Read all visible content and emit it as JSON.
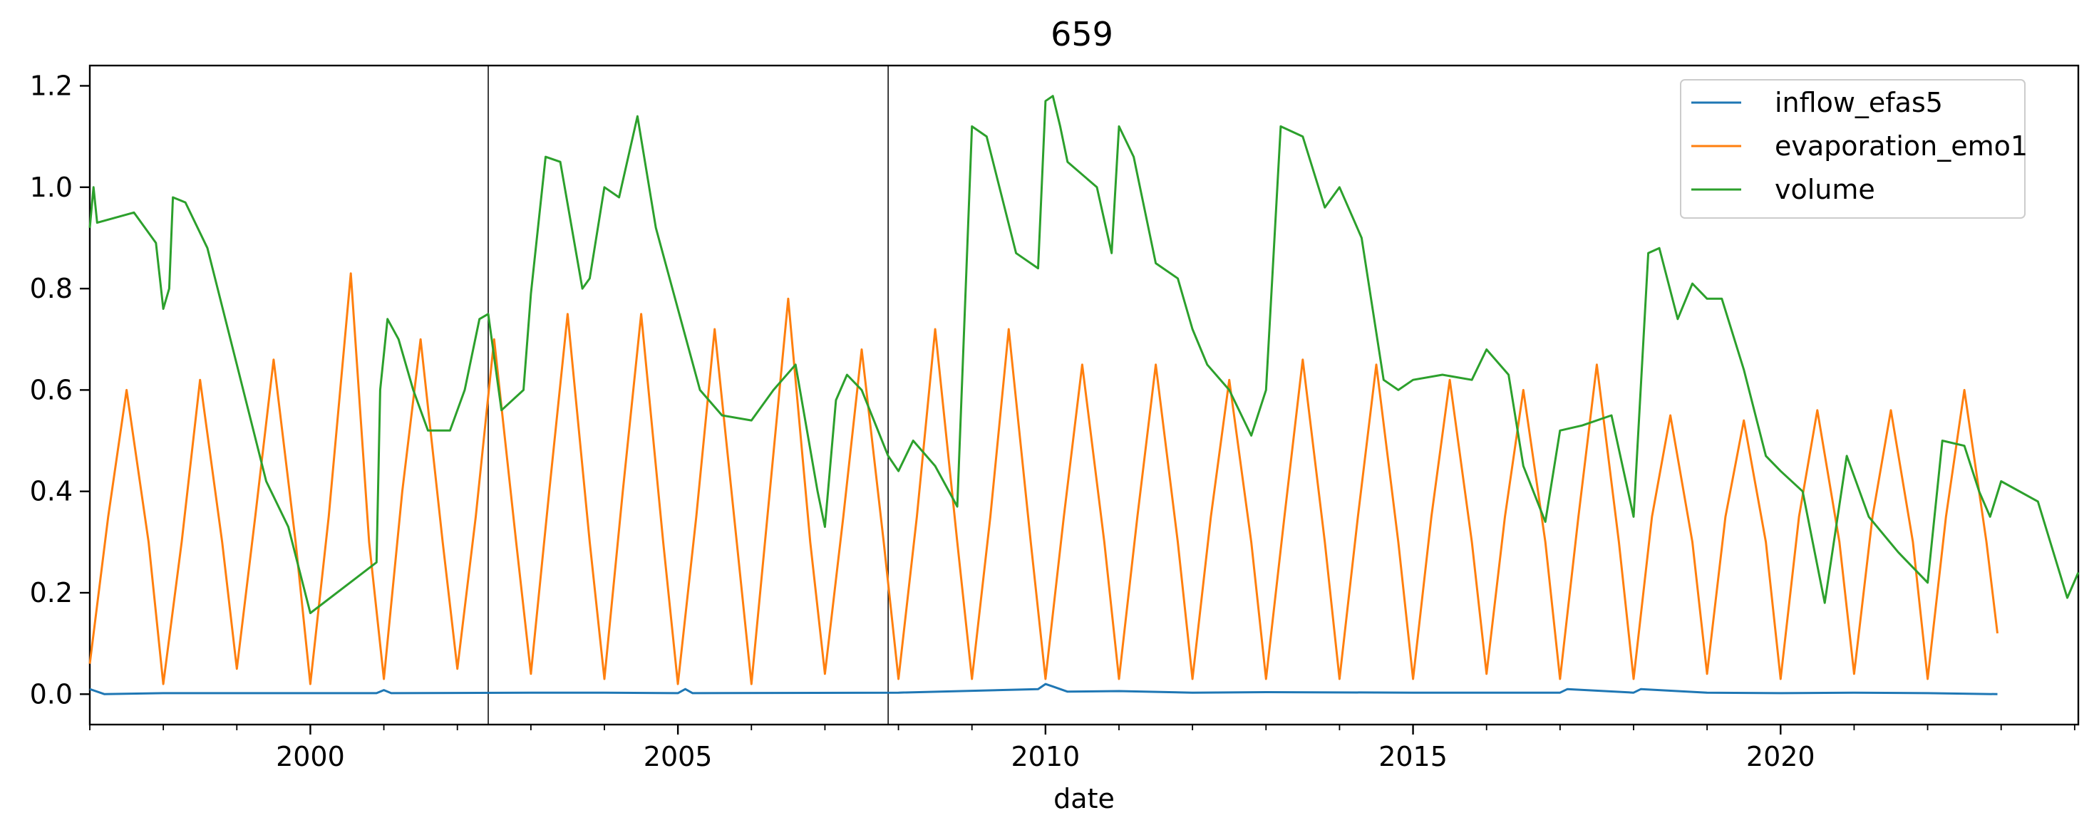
{
  "chart_data": {
    "type": "line",
    "title": "659",
    "xlabel": "date",
    "ylabel": "",
    "xlim": [
      1997.0,
      2024.05
    ],
    "ylim": [
      -0.06,
      1.24
    ],
    "grid": false,
    "legend_position": "top-right",
    "x_ticks": [
      {
        "value": 2000,
        "label": "2000"
      },
      {
        "value": 2005,
        "label": "2005"
      },
      {
        "value": 2010,
        "label": "2010"
      },
      {
        "value": 2015,
        "label": "2015"
      },
      {
        "value": 2020,
        "label": "2020"
      }
    ],
    "y_ticks": [
      {
        "value": 0.0,
        "label": "0.0"
      },
      {
        "value": 0.2,
        "label": "0.2"
      },
      {
        "value": 0.4,
        "label": "0.4"
      },
      {
        "value": 0.6,
        "label": "0.6"
      },
      {
        "value": 0.8,
        "label": "0.8"
      },
      {
        "value": 1.0,
        "label": "1.0"
      },
      {
        "value": 1.2,
        "label": "1.2"
      }
    ],
    "vertical_lines": [
      2002.42,
      2007.86
    ],
    "series": [
      {
        "name": "inflow_efas5",
        "color": "#1f77b4",
        "x": [
          1997.0,
          1997.2,
          1998.0,
          2000.9,
          2001.0,
          2001.1,
          2003.0,
          2004.0,
          2005.0,
          2005.1,
          2005.2,
          2008.0,
          2009.9,
          2010.0,
          2010.1,
          2010.3,
          2011.0,
          2012.0,
          2013.0,
          2015.0,
          2016.0,
          2017.0,
          2017.1,
          2018.0,
          2018.1,
          2019.0,
          2020.0,
          2021.0,
          2022.0,
          2022.95
        ],
        "y": [
          0.01,
          0.0,
          0.002,
          0.002,
          0.008,
          0.002,
          0.003,
          0.003,
          0.002,
          0.01,
          0.002,
          0.003,
          0.01,
          0.02,
          0.015,
          0.005,
          0.006,
          0.003,
          0.004,
          0.003,
          0.003,
          0.003,
          0.01,
          0.003,
          0.01,
          0.003,
          0.002,
          0.003,
          0.002,
          0.0
        ]
      },
      {
        "name": "evaporation_emo1",
        "color": "#ff7f0e",
        "x": [
          1997.0,
          1997.25,
          1997.5,
          1997.8,
          1998.0,
          1998.25,
          1998.5,
          1998.8,
          1999.0,
          1999.25,
          1999.5,
          1999.8,
          2000.0,
          2000.25,
          2000.55,
          2000.8,
          2001.0,
          2001.25,
          2001.5,
          2001.8,
          2002.0,
          2002.25,
          2002.5,
          2002.8,
          2003.0,
          2003.25,
          2003.5,
          2003.8,
          2004.0,
          2004.25,
          2004.5,
          2004.8,
          2005.0,
          2005.25,
          2005.5,
          2005.8,
          2006.0,
          2006.25,
          2006.5,
          2006.8,
          2007.0,
          2007.25,
          2007.5,
          2007.8,
          2008.0,
          2008.25,
          2008.5,
          2008.8,
          2009.0,
          2009.25,
          2009.5,
          2009.8,
          2010.0,
          2010.25,
          2010.5,
          2010.8,
          2011.0,
          2011.25,
          2011.5,
          2011.8,
          2012.0,
          2012.25,
          2012.5,
          2012.8,
          2013.0,
          2013.25,
          2013.5,
          2013.8,
          2014.0,
          2014.25,
          2014.5,
          2014.8,
          2015.0,
          2015.25,
          2015.5,
          2015.8,
          2016.0,
          2016.25,
          2016.5,
          2016.8,
          2017.0,
          2017.25,
          2017.5,
          2017.8,
          2018.0,
          2018.25,
          2018.5,
          2018.8,
          2019.0,
          2019.25,
          2019.5,
          2019.8,
          2020.0,
          2020.25,
          2020.5,
          2020.8,
          2021.0,
          2021.25,
          2021.5,
          2021.8,
          2022.0,
          2022.25,
          2022.5,
          2022.8,
          2022.95
        ],
        "y": [
          0.06,
          0.35,
          0.6,
          0.3,
          0.02,
          0.3,
          0.62,
          0.3,
          0.05,
          0.35,
          0.66,
          0.3,
          0.02,
          0.35,
          0.83,
          0.3,
          0.03,
          0.4,
          0.7,
          0.3,
          0.05,
          0.35,
          0.7,
          0.3,
          0.04,
          0.4,
          0.75,
          0.3,
          0.03,
          0.4,
          0.75,
          0.3,
          0.02,
          0.35,
          0.72,
          0.3,
          0.02,
          0.4,
          0.78,
          0.3,
          0.04,
          0.35,
          0.68,
          0.3,
          0.03,
          0.35,
          0.72,
          0.3,
          0.03,
          0.35,
          0.72,
          0.3,
          0.03,
          0.35,
          0.65,
          0.3,
          0.03,
          0.35,
          0.65,
          0.3,
          0.03,
          0.35,
          0.62,
          0.3,
          0.03,
          0.35,
          0.66,
          0.3,
          0.03,
          0.35,
          0.65,
          0.3,
          0.03,
          0.35,
          0.62,
          0.3,
          0.04,
          0.35,
          0.6,
          0.3,
          0.03,
          0.35,
          0.65,
          0.3,
          0.03,
          0.35,
          0.55,
          0.3,
          0.04,
          0.35,
          0.54,
          0.3,
          0.03,
          0.35,
          0.56,
          0.3,
          0.04,
          0.35,
          0.56,
          0.3,
          0.03,
          0.35,
          0.6,
          0.3,
          0.12
        ]
      },
      {
        "name": "volume",
        "color": "#2ca02c",
        "x": [
          1997.0,
          1997.05,
          1997.1,
          1997.6,
          1997.9,
          1998.0,
          1998.08,
          1998.13,
          1998.3,
          1998.6,
          1999.0,
          1999.4,
          1999.7,
          2000.0,
          2000.9,
          2000.95,
          2001.05,
          2001.2,
          2001.4,
          2001.6,
          2001.9,
          2002.1,
          2002.3,
          2002.42,
          2002.6,
          2002.9,
          2003.0,
          2003.2,
          2003.4,
          2003.7,
          2003.8,
          2004.0,
          2004.2,
          2004.45,
          2004.7,
          2005.0,
          2005.3,
          2005.6,
          2006.0,
          2006.3,
          2006.6,
          2006.9,
          2007.0,
          2007.15,
          2007.3,
          2007.5,
          2007.86,
          2008.0,
          2008.2,
          2008.5,
          2008.8,
          2009.0,
          2009.2,
          2009.6,
          2009.9,
          2010.0,
          2010.1,
          2010.2,
          2010.3,
          2010.7,
          2010.9,
          2011.0,
          2011.2,
          2011.5,
          2011.8,
          2012.0,
          2012.2,
          2012.5,
          2012.8,
          2013.0,
          2013.2,
          2013.5,
          2013.8,
          2014.0,
          2014.3,
          2014.6,
          2014.8,
          2015.0,
          2015.4,
          2015.8,
          2016.0,
          2016.3,
          2016.5,
          2016.8,
          2017.0,
          2017.3,
          2017.7,
          2018.0,
          2018.2,
          2018.35,
          2018.6,
          2018.8,
          2019.0,
          2019.2,
          2019.5,
          2019.8,
          2020.0,
          2020.3,
          2020.6,
          2020.9,
          2021.2,
          2021.6,
          2022.0,
          2022.2,
          2022.5,
          2022.7,
          2022.85,
          2023.0,
          2023.5,
          2023.9,
          2024.05
        ],
        "y": [
          0.92,
          1.0,
          0.93,
          0.95,
          0.89,
          0.76,
          0.8,
          0.98,
          0.97,
          0.88,
          0.65,
          0.42,
          0.33,
          0.16,
          0.26,
          0.6,
          0.74,
          0.7,
          0.6,
          0.52,
          0.52,
          0.6,
          0.74,
          0.75,
          0.56,
          0.6,
          0.79,
          1.06,
          1.05,
          0.8,
          0.82,
          1.0,
          0.98,
          1.14,
          0.92,
          0.76,
          0.6,
          0.55,
          0.54,
          0.6,
          0.65,
          0.4,
          0.33,
          0.58,
          0.63,
          0.6,
          0.47,
          0.44,
          0.5,
          0.45,
          0.37,
          1.12,
          1.1,
          0.87,
          0.84,
          1.17,
          1.18,
          1.12,
          1.05,
          1.0,
          0.87,
          1.12,
          1.06,
          0.85,
          0.82,
          0.72,
          0.65,
          0.6,
          0.51,
          0.6,
          1.12,
          1.1,
          0.96,
          1.0,
          0.9,
          0.62,
          0.6,
          0.62,
          0.63,
          0.62,
          0.68,
          0.63,
          0.45,
          0.34,
          0.52,
          0.53,
          0.55,
          0.35,
          0.87,
          0.88,
          0.74,
          0.81,
          0.78,
          0.78,
          0.64,
          0.47,
          0.44,
          0.4,
          0.18,
          0.47,
          0.35,
          0.28,
          0.22,
          0.5,
          0.49,
          0.4,
          0.35,
          0.42,
          0.38,
          0.19,
          0.24
        ]
      }
    ]
  }
}
